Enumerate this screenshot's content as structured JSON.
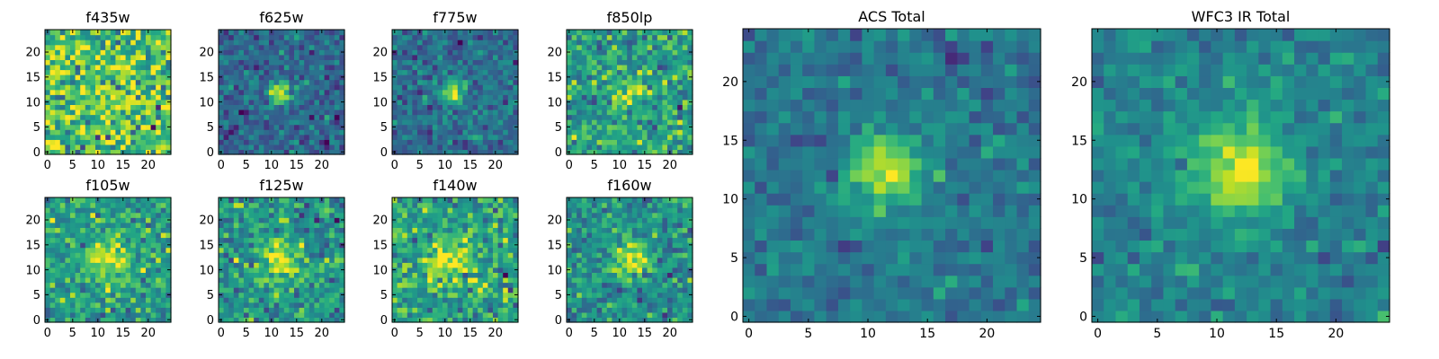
{
  "chart_data": [
    {
      "type": "heatmap",
      "title": "f435w",
      "colormap": "viridis",
      "xlim": [
        -0.5,
        24.5
      ],
      "ylim": [
        -0.5,
        24.5
      ],
      "xticks": [
        0,
        5,
        10,
        15,
        20
      ],
      "yticks": [
        0,
        5,
        10,
        15,
        20
      ],
      "grid": false,
      "source": {
        "cx": 12,
        "cy": 12,
        "sigma": 4.0,
        "peak": 0.08
      },
      "background": 0.72,
      "noise": 0.2
    },
    {
      "type": "heatmap",
      "title": "f625w",
      "colormap": "viridis",
      "xlim": [
        -0.5,
        24.5
      ],
      "ylim": [
        -0.5,
        24.5
      ],
      "xticks": [
        0,
        5,
        10,
        15,
        20
      ],
      "yticks": [
        0,
        5,
        10,
        15,
        20
      ],
      "grid": false,
      "source": {
        "cx": 11.5,
        "cy": 12,
        "sigma": 1.7,
        "peak": 0.6
      },
      "background": 0.33,
      "noise": 0.11
    },
    {
      "type": "heatmap",
      "title": "f775w",
      "colormap": "viridis",
      "xlim": [
        -0.5,
        24.5
      ],
      "ylim": [
        -0.5,
        24.5
      ],
      "xticks": [
        0,
        5,
        10,
        15,
        20
      ],
      "yticks": [
        0,
        5,
        10,
        15,
        20
      ],
      "grid": false,
      "source": {
        "cx": 11.5,
        "cy": 12,
        "sigma": 1.7,
        "peak": 0.58
      },
      "background": 0.36,
      "noise": 0.11
    },
    {
      "type": "heatmap",
      "title": "f850lp",
      "colormap": "viridis",
      "xlim": [
        -0.5,
        24.5
      ],
      "ylim": [
        -0.5,
        24.5
      ],
      "xticks": [
        0,
        5,
        10,
        15,
        20
      ],
      "yticks": [
        0,
        5,
        10,
        15,
        20
      ],
      "grid": false,
      "source": {
        "cx": 11.5,
        "cy": 12,
        "sigma": 2.0,
        "peak": 0.32
      },
      "background": 0.56,
      "noise": 0.15
    },
    {
      "type": "heatmap",
      "title": "f105w",
      "colormap": "viridis",
      "xlim": [
        -0.5,
        24.5
      ],
      "ylim": [
        -0.5,
        24.5
      ],
      "xticks": [
        0,
        5,
        10,
        15,
        20
      ],
      "yticks": [
        0,
        5,
        10,
        15,
        20
      ],
      "grid": false,
      "source": {
        "cx": 12,
        "cy": 12,
        "sigma": 3.2,
        "peak": 0.38
      },
      "background": 0.55,
      "noise": 0.14
    },
    {
      "type": "heatmap",
      "title": "f125w",
      "colormap": "viridis",
      "xlim": [
        -0.5,
        24.5
      ],
      "ylim": [
        -0.5,
        24.5
      ],
      "xticks": [
        0,
        5,
        10,
        15,
        20
      ],
      "yticks": [
        0,
        5,
        10,
        15,
        20
      ],
      "grid": false,
      "source": {
        "cx": 12,
        "cy": 12,
        "sigma": 2.8,
        "peak": 0.42
      },
      "background": 0.52,
      "noise": 0.14
    },
    {
      "type": "heatmap",
      "title": "f140w",
      "colormap": "viridis",
      "xlim": [
        -0.5,
        24.5
      ],
      "ylim": [
        -0.5,
        24.5
      ],
      "xticks": [
        0,
        5,
        10,
        15,
        20
      ],
      "yticks": [
        0,
        5,
        10,
        15,
        20
      ],
      "grid": false,
      "source": {
        "cx": 11,
        "cy": 12,
        "sigma": 3.2,
        "peak": 0.34
      },
      "background": 0.58,
      "noise": 0.15
    },
    {
      "type": "heatmap",
      "title": "f160w",
      "colormap": "viridis",
      "xlim": [
        -0.5,
        24.5
      ],
      "ylim": [
        -0.5,
        24.5
      ],
      "xticks": [
        0,
        5,
        10,
        15,
        20
      ],
      "yticks": [
        0,
        5,
        10,
        15,
        20
      ],
      "grid": false,
      "source": {
        "cx": 12,
        "cy": 12,
        "sigma": 2.5,
        "peak": 0.44
      },
      "background": 0.5,
      "noise": 0.13
    },
    {
      "type": "heatmap",
      "title": "ACS Total",
      "colormap": "viridis",
      "xlim": [
        -0.5,
        24.5
      ],
      "ylim": [
        -0.5,
        24.5
      ],
      "xticks": [
        0,
        5,
        10,
        15,
        20
      ],
      "yticks": [
        0,
        5,
        10,
        15,
        20
      ],
      "grid": false,
      "source": {
        "cx": 11.5,
        "cy": 12.5,
        "sigma": 2.0,
        "peak": 0.6
      },
      "background": 0.4,
      "noise": 0.08
    },
    {
      "type": "heatmap",
      "title": "WFC3 IR Total",
      "colormap": "viridis",
      "xlim": [
        -0.5,
        24.5
      ],
      "ylim": [
        -0.5,
        24.5
      ],
      "xticks": [
        0,
        5,
        10,
        15,
        20
      ],
      "yticks": [
        0,
        5,
        10,
        15,
        20
      ],
      "grid": false,
      "source": {
        "cx": 12,
        "cy": 12.5,
        "sigma": 2.7,
        "peak": 0.55
      },
      "background": 0.44,
      "noise": 0.08
    }
  ]
}
